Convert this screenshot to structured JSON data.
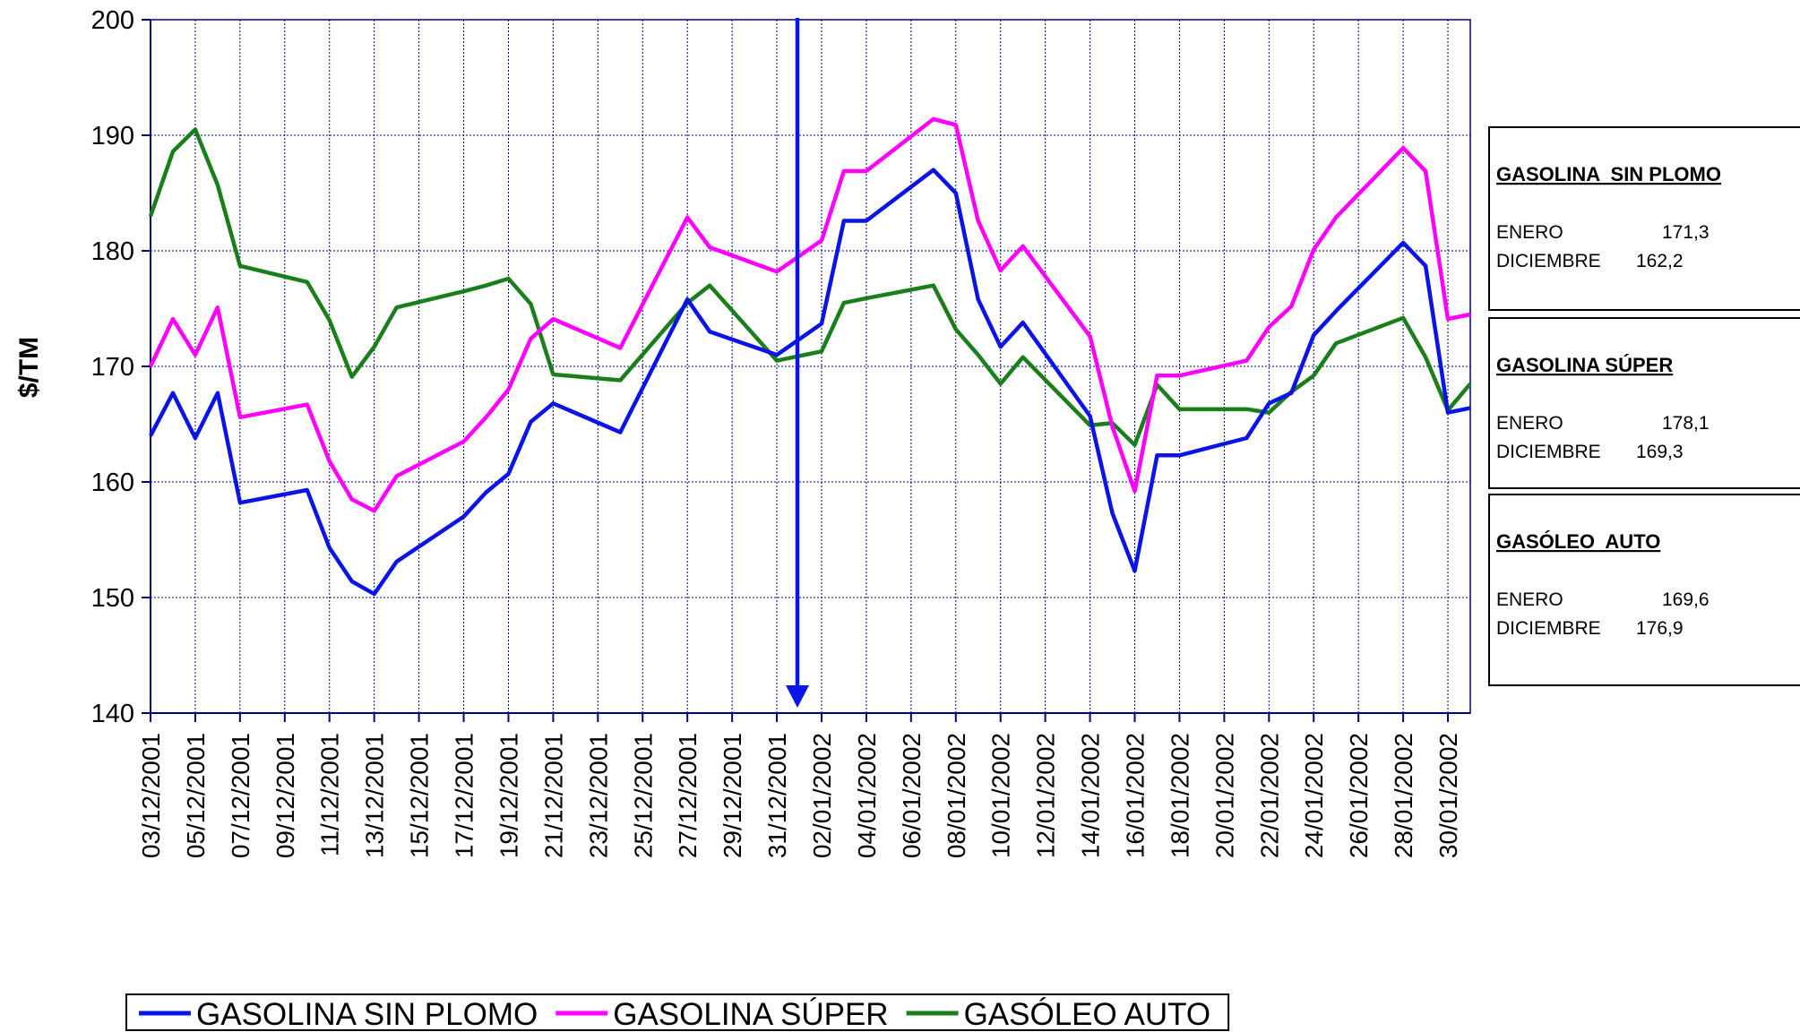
{
  "chart_data": {
    "type": "line",
    "y_label": "$/TM",
    "x": [
      "03/12/2001",
      "04/12/2001",
      "05/12/2001",
      "06/12/2001",
      "07/12/2001",
      "10/12/2001",
      "11/12/2001",
      "12/12/2001",
      "13/12/2001",
      "14/12/2001",
      "17/12/2001",
      "18/12/2001",
      "19/12/2001",
      "20/12/2001",
      "21/12/2001",
      "24/12/2001",
      "27/12/2001",
      "28/12/2001",
      "31/12/2001",
      "02/01/2002",
      "03/01/2002",
      "04/01/2002",
      "07/01/2002",
      "08/01/2002",
      "09/01/2002",
      "10/01/2002",
      "11/01/2002",
      "14/01/2002",
      "15/01/2002",
      "16/01/2002",
      "17/01/2002",
      "18/01/2002",
      "21/01/2002",
      "22/01/2002",
      "23/01/2002",
      "24/01/2002",
      "25/01/2002",
      "28/01/2002",
      "29/01/2002",
      "30/01/2002",
      "31/01/2002"
    ],
    "series": [
      {
        "name": "GASOLINA SIN PLOMO",
        "color": "#0a14e6",
        "values": [
          164,
          167.7,
          163.8,
          167.7,
          158.2,
          159.3,
          154.3,
          151.4,
          150.3,
          153.1,
          157,
          159.1,
          160.7,
          165.2,
          166.8,
          164.3,
          175.8,
          173,
          171,
          173.7,
          182.6,
          182.6,
          187,
          185,
          175.8,
          171.7,
          173.8,
          165.7,
          157.3,
          152.3,
          162.3,
          162.3,
          163.8,
          166.8,
          167.7,
          172.7,
          174.8,
          180.7,
          178.7,
          166,
          166.4
        ]
      },
      {
        "name": "GASOLINA SÚPER",
        "color": "#ff00ff",
        "values": [
          170,
          174.1,
          171,
          175.1,
          165.6,
          166.7,
          161.8,
          158.5,
          157.5,
          160.5,
          163.5,
          165.6,
          168,
          172.4,
          174.1,
          171.6,
          182.9,
          180.3,
          178.2,
          180.9,
          186.9,
          186.9,
          191.4,
          190.9,
          182.6,
          178.3,
          180.4,
          172.6,
          164.8,
          159.2,
          169.2,
          169.2,
          170.5,
          173.4,
          175.2,
          180.1,
          182.9,
          188.9,
          186.9,
          174.1,
          174.5
        ]
      },
      {
        "name": "GASÓLEO AUTO",
        "color": "#1a7f1a",
        "values": [
          183,
          188.6,
          190.5,
          185.7,
          178.7,
          177.3,
          174,
          169.1,
          171.7,
          175.1,
          176.5,
          177,
          177.6,
          175.4,
          169.3,
          168.8,
          175.5,
          177,
          170.5,
          171.3,
          175.5,
          175.9,
          177,
          173.2,
          171,
          168.5,
          170.8,
          164.9,
          165.1,
          163.2,
          168.4,
          166.3,
          166.3,
          166,
          167.8,
          169.2,
          172,
          174.2,
          170.8,
          166.2,
          168.5
        ]
      }
    ],
    "xlim": [
      "03/12/2001",
      "31/01/2002"
    ],
    "xticks": [
      "03/12/2001",
      "05/12/2001",
      "07/12/2001",
      "09/12/2001",
      "11/12/2001",
      "13/12/2001",
      "15/12/2001",
      "17/12/2001",
      "19/12/2001",
      "21/12/2001",
      "23/12/2001",
      "25/12/2001",
      "27/12/2001",
      "29/12/2001",
      "31/12/2001",
      "02/01/2002",
      "04/01/2002",
      "06/01/2002",
      "08/01/2002",
      "10/01/2002",
      "12/01/2002",
      "14/01/2002",
      "16/01/2002",
      "18/01/2002",
      "20/01/2002",
      "22/01/2002",
      "24/01/2002",
      "26/01/2002",
      "28/01/2002",
      "30/01/2002"
    ],
    "ylim": [
      140,
      200
    ],
    "yticks": [
      140,
      150,
      160,
      170,
      180,
      190,
      200
    ],
    "grid": true,
    "legend": "bottom",
    "annotations": [
      {
        "title": "GASOLINA  SIN PLOMO",
        "rows": [
          [
            "ENERO",
            "171,3"
          ],
          [
            "DICIEMBRE",
            "162,2"
          ]
        ]
      },
      {
        "title": "GASOLINA SÚPER",
        "rows": [
          [
            "ENERO",
            "178,1"
          ],
          [
            "DICIEMBRE",
            "169,3"
          ]
        ]
      },
      {
        "title": "GASÓLEO  AUTO",
        "rows": [
          [
            "ENERO",
            "169,6"
          ],
          [
            "DICIEMBRE",
            "176,9"
          ]
        ]
      }
    ]
  }
}
